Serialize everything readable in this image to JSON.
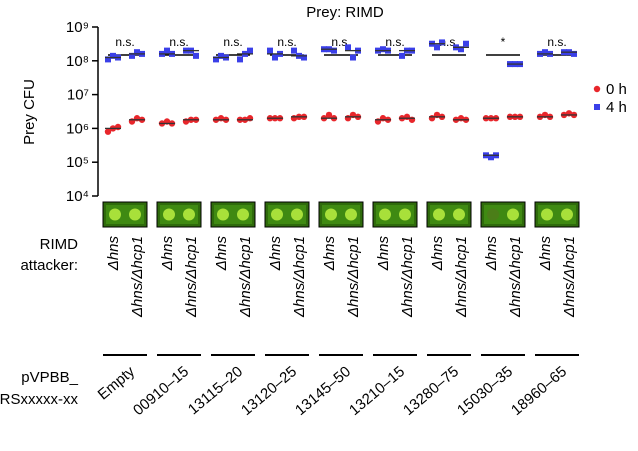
{
  "chart_data": {
    "type": "dot",
    "title": "Prey: RIMD",
    "y_label": "Prey CFU",
    "yscale": "log",
    "ylim": [
      10000,
      1000000000
    ],
    "yticks": [
      {
        "value": 10000,
        "label": "10⁴"
      },
      {
        "value": 100000,
        "label": "10⁵"
      },
      {
        "value": 1000000,
        "label": "10⁶"
      },
      {
        "value": 10000000,
        "label": "10⁷"
      },
      {
        "value": 100000000,
        "label": "10⁸"
      },
      {
        "value": 1000000000,
        "label": "10⁹"
      }
    ],
    "attacker_label": [
      "RIMD",
      "attacker:"
    ],
    "plasmid_label": [
      "pVPBB_",
      "RSxxxxx-xx"
    ],
    "categories": [
      "Δhns",
      "Δhns/Δhcp1",
      "Δhns",
      "Δhns/Δhcp1",
      "Δhns",
      "Δhns/Δhcp1",
      "Δhns",
      "Δhns/Δhcp1",
      "Δhns",
      "Δhns/Δhcp1",
      "Δhns",
      "Δhns/Δhcp1",
      "Δhns",
      "Δhns/Δhcp1",
      "Δhns",
      "Δhns/Δhcp1",
      "Δhns",
      "Δhns/Δhcp1"
    ],
    "groups": [
      "Empty",
      "00910–15",
      "13115–20",
      "13120–25",
      "13145–50",
      "13210–15",
      "13280–75",
      "15030–35",
      "18960–65"
    ],
    "significance": [
      "n.s.",
      "n.s.",
      "n.s.",
      "n.s.",
      "n.s.",
      "n.s.",
      "n.s.",
      "*",
      "n.s."
    ],
    "legend": "right",
    "series": [
      {
        "name": "0 h",
        "color": "#e8262b",
        "marker": "circle",
        "values": [
          [
            800000,
            1000000,
            1100000
          ],
          [
            1600000,
            2000000,
            1800000
          ],
          [
            1400000,
            1600000,
            1400000
          ],
          [
            1600000,
            1800000,
            1800000
          ],
          [
            1800000,
            2000000,
            1800000
          ],
          [
            1800000,
            1800000,
            2000000
          ],
          [
            2000000,
            2000000,
            2000000
          ],
          [
            2000000,
            2200000,
            2200000
          ],
          [
            2000000,
            2500000,
            2000000
          ],
          [
            2000000,
            2500000,
            2200000
          ],
          [
            1600000,
            2000000,
            1800000
          ],
          [
            2000000,
            2200000,
            1800000
          ],
          [
            2000000,
            2500000,
            2200000
          ],
          [
            1800000,
            2000000,
            1800000
          ],
          [
            2000000,
            2000000,
            2000000
          ],
          [
            2200000,
            2200000,
            2200000
          ],
          [
            2200000,
            2500000,
            2200000
          ],
          [
            2500000,
            2800000,
            2500000
          ]
        ],
        "medians": [
          1000000,
          1800000,
          1400000,
          1800000,
          1800000,
          1800000,
          2000000,
          2200000,
          2000000,
          2200000,
          1800000,
          2000000,
          2200000,
          1800000,
          2000000,
          2200000,
          2200000,
          2500000
        ]
      },
      {
        "name": "4 h",
        "color": "#3a3fe8",
        "marker": "square",
        "values": [
          [
            110000000,
            140000000,
            125000000
          ],
          [
            140000000,
            180000000,
            160000000
          ],
          [
            160000000,
            200000000,
            160000000
          ],
          [
            200000000,
            200000000,
            140000000
          ],
          [
            110000000,
            140000000,
            125000000
          ],
          [
            110000000,
            160000000,
            200000000
          ],
          [
            200000000,
            125000000,
            160000000
          ],
          [
            200000000,
            140000000,
            125000000
          ],
          [
            220000000,
            220000000,
            200000000
          ],
          [
            250000000,
            125000000,
            200000000
          ],
          [
            200000000,
            220000000,
            200000000
          ],
          [
            140000000,
            200000000,
            200000000
          ],
          [
            320000000,
            250000000,
            350000000
          ],
          [
            250000000,
            220000000,
            320000000
          ],
          [
            160000,
            140000,
            160000
          ],
          [
            80000000,
            80000000,
            80000000
          ],
          [
            160000000,
            180000000,
            160000000
          ],
          [
            180000000,
            180000000,
            160000000
          ]
        ],
        "medians": [
          125000000,
          160000000,
          160000000,
          200000000,
          125000000,
          160000000,
          160000000,
          140000000,
          220000000,
          200000000,
          200000000,
          200000000,
          320000000,
          250000000,
          160000,
          80000000,
          160000000,
          180000000
        ]
      }
    ]
  }
}
